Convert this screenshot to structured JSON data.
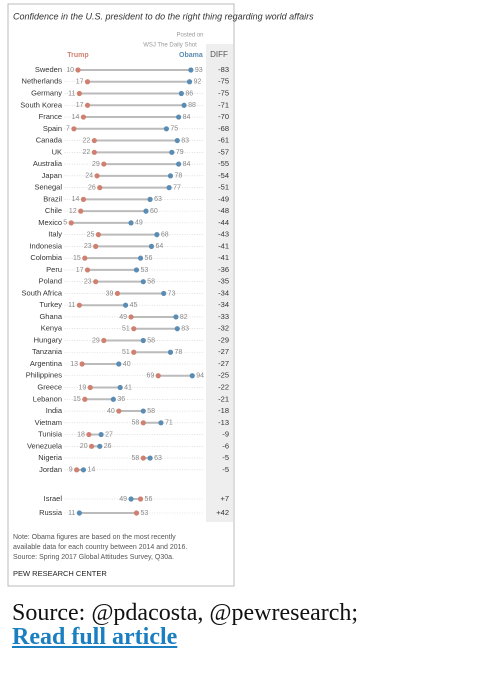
{
  "chart_data": {
    "type": "dot",
    "title": "Confidence in the U.S. president to do the right thing regarding world affairs",
    "watermark": [
      "Posted on",
      "WSJ The Daily Shot"
    ],
    "diff_header": "DIFF",
    "categories": [
      "Sweden",
      "Netherlands",
      "Germany",
      "South Korea",
      "France",
      "Spain",
      "Canada",
      "UK",
      "Australia",
      "Japan",
      "Senegal",
      "Brazil",
      "Chile",
      "Mexico",
      "Italy",
      "Indonesia",
      "Colombia",
      "Peru",
      "Poland",
      "South Africa",
      "Turkey",
      "Ghana",
      "Kenya",
      "Hungary",
      "Tanzania",
      "Argentina",
      "Philippines",
      "Greece",
      "Lebanon",
      "India",
      "Vietnam",
      "Tunisia",
      "Venezuela",
      "Nigeria",
      "Jordan",
      "Israel",
      "Russia"
    ],
    "series": [
      {
        "name": "Trump",
        "color": "#d08070",
        "values": [
          10,
          17,
          11,
          17,
          14,
          7,
          22,
          22,
          29,
          24,
          26,
          14,
          12,
          5,
          25,
          23,
          15,
          17,
          23,
          39,
          11,
          49,
          51,
          29,
          51,
          13,
          69,
          19,
          15,
          40,
          58,
          18,
          20,
          58,
          9,
          56,
          53
        ]
      },
      {
        "name": "Obama",
        "color": "#5a8cb4",
        "values": [
          93,
          92,
          86,
          88,
          84,
          75,
          83,
          79,
          84,
          78,
          77,
          63,
          60,
          49,
          68,
          64,
          56,
          53,
          58,
          73,
          45,
          82,
          83,
          58,
          78,
          40,
          94,
          41,
          36,
          58,
          71,
          27,
          26,
          63,
          14,
          49,
          11
        ]
      }
    ],
    "diff": [
      -83,
      -75,
      -75,
      -71,
      -70,
      -68,
      -61,
      -57,
      -55,
      -54,
      -51,
      -49,
      -48,
      -44,
      -43,
      -41,
      -41,
      -36,
      -35,
      -34,
      -34,
      -33,
      -32,
      -29,
      -27,
      -27,
      -25,
      -22,
      -21,
      -18,
      -13,
      -9,
      -6,
      -5,
      -5,
      {
        "value": 7,
        "label": "+7"
      },
      {
        "value": 42,
        "label": "+42"
      }
    ],
    "xlim": [
      0,
      100
    ],
    "note": [
      "Note: Obama figures are based on the most recently",
      "available data for each country between 2014 and 2016.",
      "Source: Spring 2017 Global Attitudes Survey, Q30a."
    ],
    "credit": "PEW RESEARCH CENTER"
  },
  "caption": {
    "source": "Source: @pdacosta, @pewresearch;",
    "link": "Read full article"
  }
}
